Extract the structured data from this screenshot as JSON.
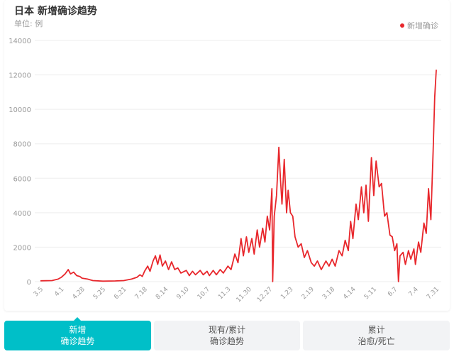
{
  "header": {
    "title": "日本 新增确诊趋势",
    "unit": "单位: 例"
  },
  "legend": {
    "label": "新增确诊",
    "color": "#e8272c"
  },
  "tabs": [
    {
      "line1": "新增",
      "line2": "确诊趋势",
      "active": true
    },
    {
      "line1": "现有/累计",
      "line2": "确诊趋势",
      "active": false
    },
    {
      "line1": "累计",
      "line2": "治愈/死亡",
      "active": false
    }
  ],
  "chart_data": {
    "type": "line",
    "title": "日本 新增确诊趋势",
    "ylabel": "单位: 例",
    "ylim": [
      0,
      14000
    ],
    "yticks": [
      0,
      2000,
      4000,
      6000,
      8000,
      10000,
      12000,
      14000
    ],
    "xticks": [
      "3.5",
      "4.1",
      "4.28",
      "5.25",
      "6.21",
      "7.18",
      "8.14",
      "9.10",
      "10.7",
      "11.3",
      "11.30",
      "12.27",
      "1.23",
      "2.19",
      "3.18",
      "4.14",
      "5.11",
      "6.7",
      "7.4",
      "7.31"
    ],
    "grid": true,
    "legend_position": "top-right",
    "series": [
      {
        "name": "新增确诊",
        "color": "#e8272c",
        "points": [
          [
            "3.5",
            50
          ],
          [
            "3.20",
            60
          ],
          [
            "3.28",
            150
          ],
          [
            "4.1",
            250
          ],
          [
            "4.6",
            450
          ],
          [
            "4.10",
            700
          ],
          [
            "4.13",
            450
          ],
          [
            "4.17",
            550
          ],
          [
            "4.21",
            350
          ],
          [
            "4.25",
            300
          ],
          [
            "4.28",
            200
          ],
          [
            "5.5",
            150
          ],
          [
            "5.12",
            60
          ],
          [
            "5.25",
            30
          ],
          [
            "6.10",
            40
          ],
          [
            "6.21",
            60
          ],
          [
            "7.1",
            150
          ],
          [
            "7.8",
            250
          ],
          [
            "7.12",
            400
          ],
          [
            "7.15",
            300
          ],
          [
            "7.18",
            600
          ],
          [
            "7.22",
            900
          ],
          [
            "7.25",
            600
          ],
          [
            "7.29",
            1200
          ],
          [
            "8.1",
            1500
          ],
          [
            "8.4",
            1000
          ],
          [
            "8.7",
            1550
          ],
          [
            "8.10",
            900
          ],
          [
            "8.14",
            1200
          ],
          [
            "8.18",
            700
          ],
          [
            "8.22",
            1150
          ],
          [
            "8.26",
            700
          ],
          [
            "8.30",
            800
          ],
          [
            "9.3",
            500
          ],
          [
            "9.10",
            650
          ],
          [
            "9.14",
            350
          ],
          [
            "9.18",
            600
          ],
          [
            "9.22",
            400
          ],
          [
            "9.28",
            650
          ],
          [
            "10.2",
            400
          ],
          [
            "10.7",
            600
          ],
          [
            "10.10",
            350
          ],
          [
            "10.15",
            650
          ],
          [
            "10.19",
            400
          ],
          [
            "10.24",
            700
          ],
          [
            "10.28",
            500
          ],
          [
            "11.3",
            900
          ],
          [
            "11.7",
            700
          ],
          [
            "11.12",
            1600
          ],
          [
            "11.16",
            1100
          ],
          [
            "11.20",
            2500
          ],
          [
            "11.23",
            1500
          ],
          [
            "11.27",
            2600
          ],
          [
            "11.30",
            1700
          ],
          [
            "12.4",
            2500
          ],
          [
            "12.7",
            1600
          ],
          [
            "12.11",
            3000
          ],
          [
            "12.14",
            2000
          ],
          [
            "12.18",
            3100
          ],
          [
            "12.21",
            2300
          ],
          [
            "12.24",
            3800
          ],
          [
            "12.27",
            3000
          ],
          [
            "12.30",
            5400
          ],
          [
            "12.31",
            0
          ],
          [
            "1.2",
            3800
          ],
          [
            "1.5",
            5000
          ],
          [
            "1.8",
            7800
          ],
          [
            "1.10",
            6000
          ],
          [
            "1.12",
            4500
          ],
          [
            "1.15",
            7100
          ],
          [
            "1.18",
            4000
          ],
          [
            "1.20",
            5300
          ],
          [
            "1.23",
            4000
          ],
          [
            "1.26",
            3800
          ],
          [
            "1.29",
            2600
          ],
          [
            "2.2",
            2000
          ],
          [
            "2.6",
            2200
          ],
          [
            "2.10",
            1400
          ],
          [
            "2.14",
            1800
          ],
          [
            "2.19",
            1100
          ],
          [
            "2.23",
            900
          ],
          [
            "2.27",
            1200
          ],
          [
            "3.4",
            700
          ],
          [
            "3.10",
            1200
          ],
          [
            "3.14",
            900
          ],
          [
            "3.18",
            1300
          ],
          [
            "3.22",
            900
          ],
          [
            "3.27",
            1800
          ],
          [
            "3.31",
            1500
          ],
          [
            "4.4",
            2400
          ],
          [
            "4.8",
            1800
          ],
          [
            "4.11",
            3500
          ],
          [
            "4.14",
            2500
          ],
          [
            "4.18",
            4500
          ],
          [
            "4.21",
            3600
          ],
          [
            "4.25",
            5500
          ],
          [
            "4.28",
            4000
          ],
          [
            "5.1",
            5600
          ],
          [
            "5.4",
            3500
          ],
          [
            "5.8",
            7200
          ],
          [
            "5.11",
            5000
          ],
          [
            "5.14",
            7000
          ],
          [
            "5.18",
            5500
          ],
          [
            "5.21",
            5700
          ],
          [
            "5.25",
            3800
          ],
          [
            "5.28",
            4000
          ],
          [
            "6.1",
            2700
          ],
          [
            "6.4",
            2600
          ],
          [
            "6.7",
            1800
          ],
          [
            "6.10",
            2200
          ],
          [
            "6.12",
            0
          ],
          [
            "6.14",
            1500
          ],
          [
            "6.18",
            1700
          ],
          [
            "6.21",
            1000
          ],
          [
            "6.25",
            1800
          ],
          [
            "6.28",
            1300
          ],
          [
            "7.2",
            1900
          ],
          [
            "7.4",
            1000
          ],
          [
            "7.8",
            2300
          ],
          [
            "7.11",
            1700
          ],
          [
            "7.15",
            3400
          ],
          [
            "7.18",
            2800
          ],
          [
            "7.21",
            5400
          ],
          [
            "7.24",
            3600
          ],
          [
            "7.27",
            7600
          ],
          [
            "7.29",
            10700
          ],
          [
            "7.31",
            12300
          ]
        ]
      }
    ]
  }
}
